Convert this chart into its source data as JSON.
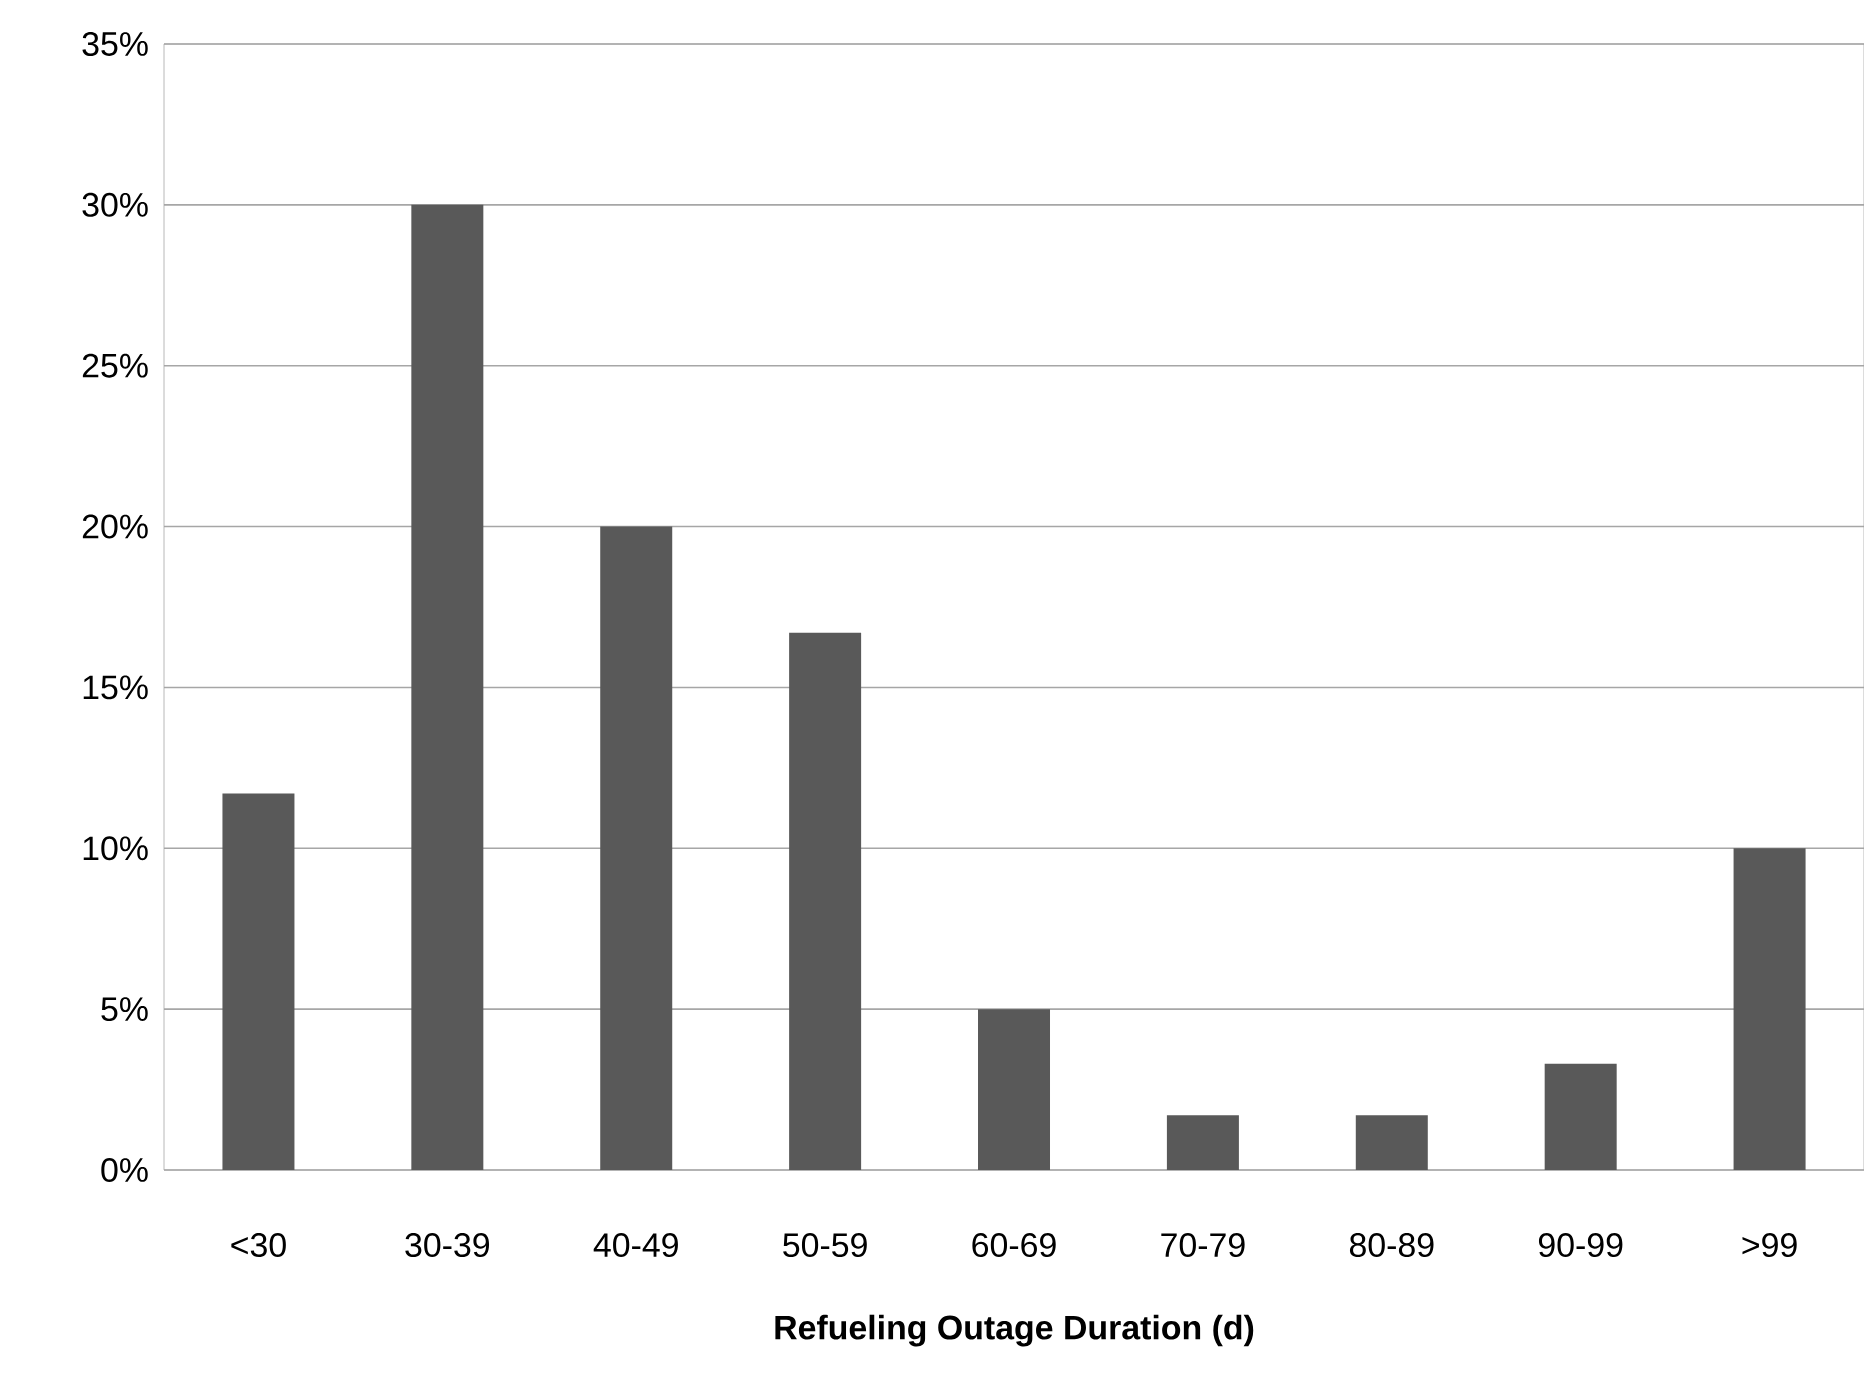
{
  "chart_data": {
    "type": "bar",
    "xlabel": "Refueling Outage Duration (d)",
    "categories": [
      "<30",
      "30-39",
      "40-49",
      "50-59",
      "60-69",
      "70-79",
      "80-89",
      "90-99",
      ">99"
    ],
    "values": [
      11.7,
      30,
      20,
      16.7,
      5,
      1.7,
      1.7,
      3.3,
      10
    ],
    "color": "#595959",
    "ylim": [
      0,
      35
    ],
    "yticks": [
      {
        "value": 0,
        "label": "0%"
      },
      {
        "value": 5,
        "label": "5%"
      },
      {
        "value": 10,
        "label": "10%"
      },
      {
        "value": 15,
        "label": "15%"
      },
      {
        "value": 20,
        "label": "20%"
      },
      {
        "value": 25,
        "label": "25%"
      },
      {
        "value": 30,
        "label": "30%"
      },
      {
        "value": 35,
        "label": "35%"
      }
    ],
    "grid": "y"
  }
}
